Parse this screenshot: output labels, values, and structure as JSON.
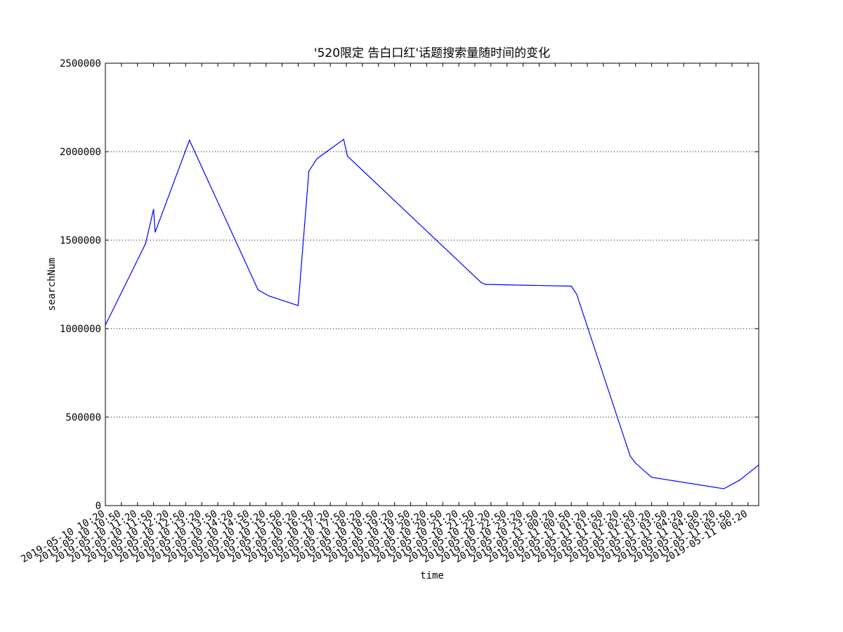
{
  "chart_data": {
    "type": "line",
    "title": "'520限定 告白口红'话题搜索量随时间的变化",
    "xlabel": "time",
    "ylabel": "searchNum",
    "ylim": [
      0,
      2500000
    ],
    "yticks": [
      0,
      500000,
      1000000,
      1500000,
      2000000,
      2500000
    ],
    "ytick_labels": [
      "0",
      "500000",
      "1000000",
      "1500000",
      "2000000",
      "2500000"
    ],
    "grid": "horizontal dotted",
    "line_color": "#0000ff",
    "x_start": "2019-05-10 10:20",
    "x_end": "2019-05-11 06:40",
    "xticks": [
      "2019-05-10 10:20",
      "2019-05-10 10:50",
      "2019-05-10 11:20",
      "2019-05-10 11:50",
      "2019-05-10 12:20",
      "2019-05-10 12:50",
      "2019-05-10 13:20",
      "2019-05-10 13:50",
      "2019-05-10 14:20",
      "2019-05-10 14:50",
      "2019-05-10 15:20",
      "2019-05-10 15:50",
      "2019-05-10 16:20",
      "2019-05-10 16:50",
      "2019-05-10 17:20",
      "2019-05-10 17:50",
      "2019-05-10 18:20",
      "2019-05-10 18:50",
      "2019-05-10 19:20",
      "2019-05-10 19:50",
      "2019-05-10 20:20",
      "2019-05-10 20:50",
      "2019-05-10 21:20",
      "2019-05-10 21:50",
      "2019-05-10 22:20",
      "2019-05-10 22:50",
      "2019-05-10 23:20",
      "2019-05-10 23:50",
      "2019-05-11 00:20",
      "2019-05-11 00:50",
      "2019-05-11 01:20",
      "2019-05-11 01:50",
      "2019-05-11 02:20",
      "2019-05-11 02:50",
      "2019-05-11 03:20",
      "2019-05-11 03:50",
      "2019-05-11 04:20",
      "2019-05-11 04:50",
      "2019-05-11 05:20",
      "2019-05-11 05:50",
      "2019-05-11 06:20"
    ],
    "series": [
      {
        "x": [
          "2019-05-10 10:20",
          "2019-05-10 11:35",
          "2019-05-10 11:50",
          "2019-05-10 11:53",
          "2019-05-10 12:57",
          "2019-05-10 15:05",
          "2019-05-10 15:25",
          "2019-05-10 16:20",
          "2019-05-10 16:40",
          "2019-05-10 16:55",
          "2019-05-10 17:45",
          "2019-05-10 17:52",
          "2019-05-10 22:02",
          "2019-05-10 22:10",
          "2019-05-11 00:50",
          "2019-05-11 01:00",
          "2019-05-11 02:40",
          "2019-05-11 02:50",
          "2019-05-11 03:20",
          "2019-05-11 05:35",
          "2019-05-11 06:05",
          "2019-05-11 06:40"
        ],
        "values": [
          1020000,
          1480000,
          1675000,
          1545000,
          2065000,
          1220000,
          1185000,
          1130000,
          1890000,
          1960000,
          2070000,
          1975000,
          1260000,
          1250000,
          1240000,
          1195000,
          280000,
          240000,
          160000,
          95000,
          145000,
          230000
        ]
      }
    ]
  }
}
